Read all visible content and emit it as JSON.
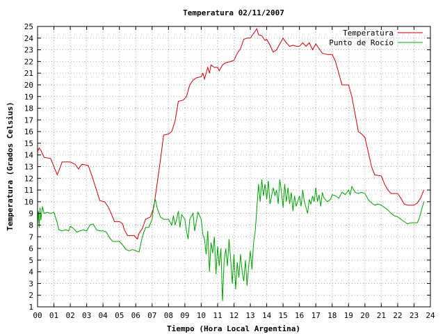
{
  "chart_data": {
    "type": "line",
    "title": "Temperatura 02/11/2007",
    "xlabel": "Tiempo (Hora Local Argentina)",
    "ylabel": "Temperatura (Grados Celsius)",
    "xlim": [
      0,
      24
    ],
    "ylim": [
      1,
      25
    ],
    "x_ticks": [
      "00",
      "01",
      "02",
      "03",
      "04",
      "05",
      "06",
      "07",
      "08",
      "09",
      "10",
      "11",
      "12",
      "13",
      "14",
      "15",
      "16",
      "17",
      "18",
      "19",
      "20",
      "21",
      "22",
      "23",
      "24"
    ],
    "y_ticks": [
      1,
      2,
      3,
      4,
      5,
      6,
      7,
      8,
      9,
      10,
      11,
      12,
      13,
      14,
      15,
      16,
      17,
      18,
      19,
      20,
      21,
      22,
      23,
      24,
      25
    ],
    "grid": true,
    "legend_position": "top-right",
    "series": [
      {
        "name": "Temperatura",
        "color": "#cc0000",
        "points": [
          [
            0.0,
            14.3
          ],
          [
            0.1,
            14.6
          ],
          [
            0.2,
            14.4
          ],
          [
            0.4,
            13.8
          ],
          [
            0.8,
            13.7
          ],
          [
            1.0,
            13.0
          ],
          [
            1.2,
            12.3
          ],
          [
            1.4,
            13.0
          ],
          [
            1.5,
            13.4
          ],
          [
            2.0,
            13.4
          ],
          [
            2.3,
            13.2
          ],
          [
            2.5,
            12.8
          ],
          [
            2.7,
            13.2
          ],
          [
            3.1,
            13.1
          ],
          [
            3.3,
            12.3
          ],
          [
            3.6,
            11.0
          ],
          [
            3.8,
            10.1
          ],
          [
            4.1,
            10.0
          ],
          [
            4.3,
            9.6
          ],
          [
            4.5,
            9.0
          ],
          [
            4.7,
            8.3
          ],
          [
            5.0,
            8.3
          ],
          [
            5.2,
            8.1
          ],
          [
            5.3,
            7.6
          ],
          [
            5.5,
            7.1
          ],
          [
            5.9,
            7.1
          ],
          [
            6.1,
            6.8
          ],
          [
            6.2,
            7.3
          ],
          [
            6.4,
            7.7
          ],
          [
            6.6,
            8.5
          ],
          [
            6.9,
            8.7
          ],
          [
            7.1,
            9.5
          ],
          [
            7.3,
            11.5
          ],
          [
            7.5,
            13.5
          ],
          [
            7.7,
            15.7
          ],
          [
            8.0,
            15.8
          ],
          [
            8.2,
            16.0
          ],
          [
            8.4,
            16.9
          ],
          [
            8.6,
            18.6
          ],
          [
            8.9,
            18.7
          ],
          [
            9.1,
            19.0
          ],
          [
            9.3,
            20.0
          ],
          [
            9.5,
            20.4
          ],
          [
            9.7,
            20.6
          ],
          [
            10.0,
            20.7
          ],
          [
            10.1,
            21.0
          ],
          [
            10.2,
            20.5
          ],
          [
            10.4,
            21.5
          ],
          [
            10.5,
            21.0
          ],
          [
            10.6,
            21.7
          ],
          [
            10.8,
            21.5
          ],
          [
            11.0,
            21.5
          ],
          [
            11.1,
            21.2
          ],
          [
            11.3,
            21.7
          ],
          [
            11.5,
            21.9
          ],
          [
            11.8,
            22.0
          ],
          [
            12.0,
            22.1
          ],
          [
            12.2,
            22.7
          ],
          [
            12.4,
            23.1
          ],
          [
            12.6,
            23.9
          ],
          [
            12.8,
            24.0
          ],
          [
            13.0,
            24.0
          ],
          [
            13.2,
            24.4
          ],
          [
            13.4,
            24.8
          ],
          [
            13.5,
            24.3
          ],
          [
            13.7,
            24.2
          ],
          [
            13.9,
            23.8
          ],
          [
            14.0,
            23.9
          ],
          [
            14.2,
            23.4
          ],
          [
            14.4,
            22.8
          ],
          [
            14.6,
            23.0
          ],
          [
            14.8,
            23.5
          ],
          [
            15.0,
            24.0
          ],
          [
            15.2,
            23.6
          ],
          [
            15.4,
            23.3
          ],
          [
            15.6,
            23.4
          ],
          [
            15.8,
            23.3
          ],
          [
            16.0,
            23.3
          ],
          [
            16.2,
            23.6
          ],
          [
            16.4,
            23.3
          ],
          [
            16.6,
            23.6
          ],
          [
            16.8,
            23.0
          ],
          [
            17.0,
            23.5
          ],
          [
            17.2,
            23.1
          ],
          [
            17.4,
            22.7
          ],
          [
            17.7,
            22.6
          ],
          [
            18.0,
            22.6
          ],
          [
            18.2,
            22.0
          ],
          [
            18.4,
            21.0
          ],
          [
            18.6,
            20.0
          ],
          [
            19.0,
            20.0
          ],
          [
            19.2,
            19.0
          ],
          [
            19.4,
            17.5
          ],
          [
            19.6,
            16.0
          ],
          [
            19.8,
            15.8
          ],
          [
            20.0,
            15.5
          ],
          [
            20.2,
            14.3
          ],
          [
            20.4,
            13.0
          ],
          [
            20.6,
            12.3
          ],
          [
            21.0,
            12.2
          ],
          [
            21.2,
            11.5
          ],
          [
            21.4,
            11.0
          ],
          [
            21.6,
            10.7
          ],
          [
            22.0,
            10.7
          ],
          [
            22.2,
            10.3
          ],
          [
            22.4,
            9.8
          ],
          [
            22.6,
            9.7
          ],
          [
            23.0,
            9.7
          ],
          [
            23.2,
            9.9
          ],
          [
            23.4,
            10.3
          ],
          [
            23.6,
            11.0
          ]
        ]
      },
      {
        "name": "Punto de Rocío",
        "color": "#00a000",
        "points": [
          [
            0.0,
            8.0
          ],
          [
            0.05,
            9.2
          ],
          [
            0.1,
            7.8
          ],
          [
            0.15,
            9.5
          ],
          [
            0.2,
            8.4
          ],
          [
            0.3,
            9.6
          ],
          [
            0.4,
            9.0
          ],
          [
            0.6,
            9.1
          ],
          [
            0.8,
            9.0
          ],
          [
            1.0,
            9.1
          ],
          [
            1.2,
            8.2
          ],
          [
            1.3,
            7.6
          ],
          [
            1.5,
            7.5
          ],
          [
            1.7,
            7.6
          ],
          [
            1.9,
            7.5
          ],
          [
            2.0,
            7.9
          ],
          [
            2.2,
            7.7
          ],
          [
            2.4,
            7.4
          ],
          [
            2.6,
            7.5
          ],
          [
            2.8,
            7.6
          ],
          [
            3.0,
            7.5
          ],
          [
            3.2,
            8.0
          ],
          [
            3.4,
            8.1
          ],
          [
            3.6,
            7.6
          ],
          [
            3.8,
            7.5
          ],
          [
            4.0,
            7.5
          ],
          [
            4.2,
            7.4
          ],
          [
            4.4,
            6.9
          ],
          [
            4.6,
            6.6
          ],
          [
            4.8,
            6.6
          ],
          [
            5.0,
            6.6
          ],
          [
            5.2,
            6.3
          ],
          [
            5.4,
            5.9
          ],
          [
            5.6,
            5.8
          ],
          [
            5.8,
            5.9
          ],
          [
            6.0,
            5.8
          ],
          [
            6.2,
            5.7
          ],
          [
            6.4,
            7.0
          ],
          [
            6.6,
            7.8
          ],
          [
            6.8,
            7.8
          ],
          [
            7.0,
            8.5
          ],
          [
            7.1,
            9.7
          ],
          [
            7.2,
            10.2
          ],
          [
            7.3,
            9.5
          ],
          [
            7.5,
            8.7
          ],
          [
            7.7,
            8.5
          ],
          [
            8.0,
            8.5
          ],
          [
            8.2,
            8.0
          ],
          [
            8.3,
            8.8
          ],
          [
            8.4,
            8.0
          ],
          [
            8.5,
            8.5
          ],
          [
            8.6,
            9.2
          ],
          [
            8.7,
            7.8
          ],
          [
            8.8,
            8.9
          ],
          [
            9.0,
            8.5
          ],
          [
            9.1,
            7.5
          ],
          [
            9.2,
            6.8
          ],
          [
            9.3,
            8.5
          ],
          [
            9.5,
            9.0
          ],
          [
            9.6,
            7.5
          ],
          [
            9.8,
            9.1
          ],
          [
            10.0,
            8.5
          ],
          [
            10.1,
            7.2
          ],
          [
            10.2,
            6.8
          ],
          [
            10.3,
            5.5
          ],
          [
            10.4,
            7.5
          ],
          [
            10.5,
            4.0
          ],
          [
            10.6,
            6.5
          ],
          [
            10.7,
            5.6
          ],
          [
            10.8,
            7.0
          ],
          [
            10.9,
            3.8
          ],
          [
            11.0,
            6.2
          ],
          [
            11.1,
            4.5
          ],
          [
            11.2,
            6.0
          ],
          [
            11.3,
            1.5
          ],
          [
            11.4,
            5.0
          ],
          [
            11.5,
            6.0
          ],
          [
            11.6,
            4.5
          ],
          [
            11.7,
            6.8
          ],
          [
            11.8,
            5.0
          ],
          [
            11.9,
            3.0
          ],
          [
            12.0,
            5.5
          ],
          [
            12.1,
            2.5
          ],
          [
            12.2,
            4.8
          ],
          [
            12.3,
            3.5
          ],
          [
            12.4,
            5.5
          ],
          [
            12.5,
            4.0
          ],
          [
            12.6,
            3.2
          ],
          [
            12.7,
            5.0
          ],
          [
            12.8,
            2.8
          ],
          [
            12.9,
            4.5
          ],
          [
            13.0,
            5.8
          ],
          [
            13.1,
            4.2
          ],
          [
            13.2,
            6.5
          ],
          [
            13.3,
            7.5
          ],
          [
            13.4,
            9.5
          ],
          [
            13.5,
            11.5
          ],
          [
            13.6,
            10.0
          ],
          [
            13.7,
            11.9
          ],
          [
            13.8,
            10.5
          ],
          [
            13.9,
            11.5
          ],
          [
            14.0,
            10.2
          ],
          [
            14.1,
            11.8
          ],
          [
            14.2,
            9.8
          ],
          [
            14.4,
            11.2
          ],
          [
            14.5,
            10.5
          ],
          [
            14.6,
            11.0
          ],
          [
            14.7,
            9.8
          ],
          [
            14.8,
            11.9
          ],
          [
            14.9,
            10.8
          ],
          [
            15.0,
            9.5
          ],
          [
            15.1,
            11.5
          ],
          [
            15.2,
            10.0
          ],
          [
            15.3,
            11.2
          ],
          [
            15.4,
            9.8
          ],
          [
            15.5,
            10.8
          ],
          [
            15.6,
            9.2
          ],
          [
            15.7,
            10.5
          ],
          [
            15.8,
            9.6
          ],
          [
            16.0,
            10.5
          ],
          [
            16.1,
            9.6
          ],
          [
            16.2,
            11.0
          ],
          [
            16.3,
            10.0
          ],
          [
            16.4,
            9.5
          ],
          [
            16.5,
            9.0
          ],
          [
            16.6,
            10.2
          ],
          [
            16.7,
            9.8
          ],
          [
            16.8,
            10.5
          ],
          [
            16.9,
            10.0
          ],
          [
            17.0,
            11.2
          ],
          [
            17.1,
            10.0
          ],
          [
            17.2,
            10.6
          ],
          [
            17.3,
            9.6
          ],
          [
            17.4,
            10.8
          ],
          [
            17.5,
            10.3
          ],
          [
            17.7,
            10.0
          ],
          [
            17.9,
            10.2
          ],
          [
            18.0,
            10.6
          ],
          [
            18.2,
            10.5
          ],
          [
            18.4,
            10.3
          ],
          [
            18.6,
            10.8
          ],
          [
            18.8,
            10.6
          ],
          [
            19.0,
            11.0
          ],
          [
            19.1,
            10.6
          ],
          [
            19.2,
            11.3
          ],
          [
            19.4,
            10.8
          ],
          [
            19.6,
            10.7
          ],
          [
            19.8,
            10.8
          ],
          [
            20.0,
            10.7
          ],
          [
            20.2,
            10.2
          ],
          [
            20.4,
            9.9
          ],
          [
            20.6,
            9.7
          ],
          [
            20.8,
            9.8
          ],
          [
            21.0,
            9.7
          ],
          [
            21.2,
            9.5
          ],
          [
            21.4,
            9.3
          ],
          [
            21.6,
            9.0
          ],
          [
            21.8,
            8.8
          ],
          [
            22.0,
            8.7
          ],
          [
            22.2,
            8.5
          ],
          [
            22.4,
            8.3
          ],
          [
            22.6,
            8.1
          ],
          [
            22.8,
            8.2
          ],
          [
            23.0,
            8.2
          ],
          [
            23.2,
            8.2
          ],
          [
            23.3,
            8.5
          ],
          [
            23.4,
            9.0
          ],
          [
            23.5,
            9.5
          ],
          [
            23.6,
            10.0
          ]
        ]
      }
    ]
  }
}
